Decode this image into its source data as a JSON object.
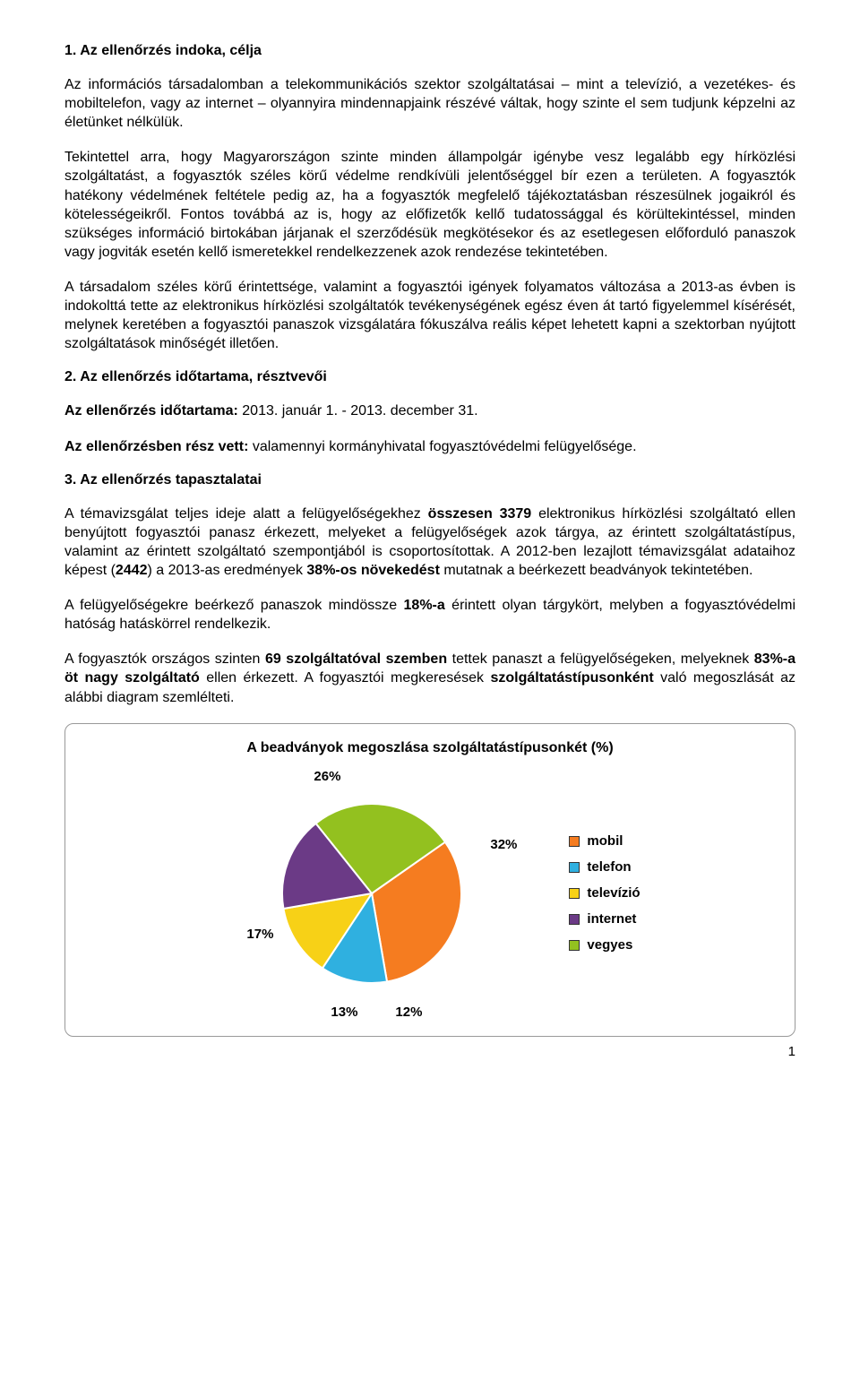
{
  "title1": "1. Az ellenőrzés indoka, célja",
  "para1": "Az információs társadalomban a telekommunikációs szektor szolgáltatásai – mint a televízió, a vezetékes- és mobiltelefon, vagy az internet – olyannyira mindennapjaink részévé váltak, hogy szinte el sem tudjunk képzelni az életünket nélkülük.",
  "para2": "Tekintettel arra, hogy Magyarországon szinte minden állampolgár igénybe vesz legalább egy hírközlési szolgáltatást, a fogyasztók széles körű védelme rendkívüli jelentőséggel bír ezen a területen. A fogyasztók hatékony védelmének feltétele pedig az, ha a fogyasztók megfelelő tájékoztatásban részesülnek jogaikról és kötelességeikről. Fontos továbbá az is, hogy az előfizetők kellő tudatossággal és körültekintéssel, minden szükséges információ birtokában járjanak el szerződésük megkötésekor és az esetlegesen előforduló panaszok vagy jogviták esetén kellő ismeretekkel rendelkezzenek azok rendezése tekintetében.",
  "para3": "A társadalom széles körű érintettsége, valamint a fogyasztói igények folyamatos változása a 2013-as évben is indokolttá tette az elektronikus hírközlési szolgáltatók tevékenységének egész éven át tartó figyelemmel kísérését, melynek keretében a fogyasztói panaszok vizsgálatára fókuszálva reális képet lehetett kapni a szektorban nyújtott szolgáltatások minőségét illetően.",
  "title2": "2. Az ellenőrzés időtartama, résztvevői",
  "line_duration_label": "Az ellenőrzés időtartama:",
  "line_duration_value": " 2013. január 1. - 2013. december 31.",
  "line_participants_label": "Az ellenőrzésben rész vett:",
  "line_participants_value": " valamennyi kormányhivatal fogyasztóvédelmi felügyelősége.",
  "title3": "3. Az ellenőrzés tapasztalatai",
  "para4_a": "A témavizsgálat teljes ideje alatt a felügyelőségekhez ",
  "para4_b": "összesen 3379",
  "para4_c": " elektronikus hírközlési szolgáltató ellen benyújtott fogyasztói panasz érkezett, melyeket a felügyelőségek azok tárgya, az érintett szolgáltatástípus, valamint az érintett szolgáltató szempontjából is csoportosítottak. A 2012-ben lezajlott témavizsgálat adataihoz képest (",
  "para4_d": "2442",
  "para4_e": ") a 2013-as eredmények ",
  "para4_f": "38%-os növekedést",
  "para4_g": " mutatnak a beérkezett beadványok tekintetében.",
  "para5_a": "A felügyelőségekre beérkező panaszok mindössze ",
  "para5_b": "18%-a",
  "para5_c": " érintett olyan tárgykört, melyben a fogyasztóvédelmi hatóság hatáskörrel rendelkezik.",
  "para6_a": "A fogyasztók országos szinten ",
  "para6_b": "69 szolgáltatóval szemben",
  "para6_c": " tettek panaszt a felügyelőségeken, melyeknek ",
  "para6_d": "83%-a öt nagy szolgáltató",
  "para6_e": " ellen érkezett. A fogyasztói megkeresések ",
  "para6_f": "szolgáltatástípusonként",
  "para6_g": " való megoszlását az alábbi diagram szemlélteti.",
  "chart": {
    "title": "A beadványok megoszlása szolgáltatástípusonkét (%)",
    "type": "pie",
    "background_color": "#ffffff",
    "series": [
      {
        "label": "mobil",
        "value": 32,
        "color": "#f57c20"
      },
      {
        "label": "telefon",
        "value": 12,
        "color": "#2fb0e0"
      },
      {
        "label": "televízió",
        "value": 13,
        "color": "#f7d117"
      },
      {
        "label": "internet",
        "value": 17,
        "color": "#6b3a86"
      },
      {
        "label": "vegyes",
        "value": 26,
        "color": "#93c11f"
      }
    ],
    "label_fontsize": 15,
    "title_fontsize": 16,
    "stroke_color": "#ffffff",
    "stroke_width": 2,
    "pct_labels": {
      "l32": "32%",
      "l12": "12%",
      "l13": "13%",
      "l17": "17%",
      "l26": "26%"
    }
  },
  "page_number": "1"
}
